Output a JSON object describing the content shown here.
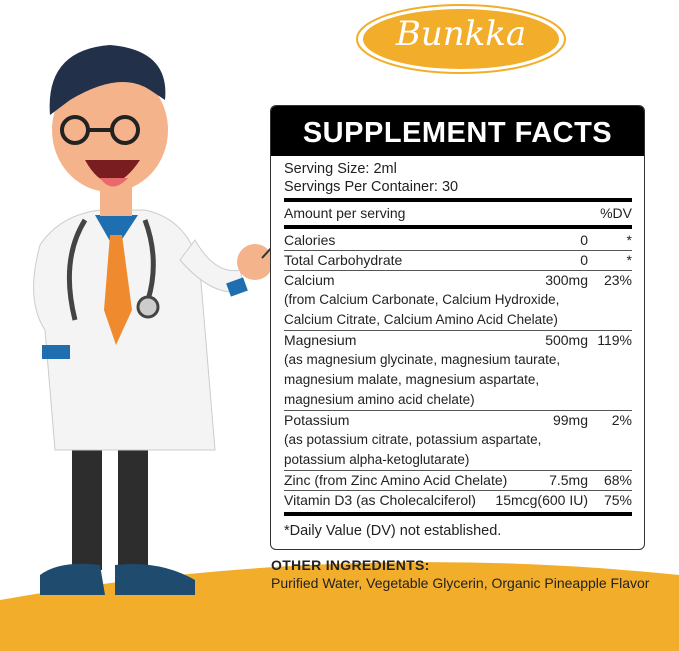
{
  "brand": {
    "logo_text": "Bunkka",
    "color": "#f2ae2a"
  },
  "facts": {
    "title": "SUPPLEMENT FACTS",
    "serving_size": "Serving Size: 2ml",
    "servings_per_container": "Servings Per Container: 30",
    "amount_header": "Amount per serving",
    "dv_header": "%DV",
    "rows": [
      {
        "name": "Calories",
        "amount": "0",
        "dv": "*",
        "sub": []
      },
      {
        "name": "Total Carbohydrate",
        "amount": "0",
        "dv": "*",
        "sub": []
      },
      {
        "name": "Calcium",
        "amount": "300mg",
        "dv": "23%",
        "sub": [
          "(from Calcium Carbonate, Calcium Hydroxide,",
          "Calcium Citrate, Calcium Amino Acid Chelate)"
        ]
      },
      {
        "name": "Magnesium",
        "amount": "500mg",
        "dv": "119%",
        "sub": [
          "(as magnesium glycinate, magnesium taurate,",
          "magnesium malate, magnesium aspartate,",
          "magnesium amino acid chelate)"
        ]
      },
      {
        "name": "Potassium",
        "amount": "99mg",
        "dv": "2%",
        "sub": [
          "(as potassium citrate, potassium aspartate,",
          "potassium alpha-ketoglutarate)"
        ]
      },
      {
        "name": "Zinc (from Zinc Amino Acid Chelate)",
        "amount": "7.5mg",
        "dv": "68%",
        "sub": []
      },
      {
        "name": "Vitamin D3 (as Cholecalciferol)",
        "amount": "15mcg(600 IU)",
        "dv": "75%",
        "sub": []
      }
    ],
    "footnote": "*Daily Value (DV) not established."
  },
  "other_ingredients": {
    "label": "OTHER INGREDIENTS:",
    "text": "Purified Water, Vegetable Glycerin, Organic Pineapple Flavor"
  },
  "illustration": {
    "subject": "cartoon-doctor-pointing"
  }
}
